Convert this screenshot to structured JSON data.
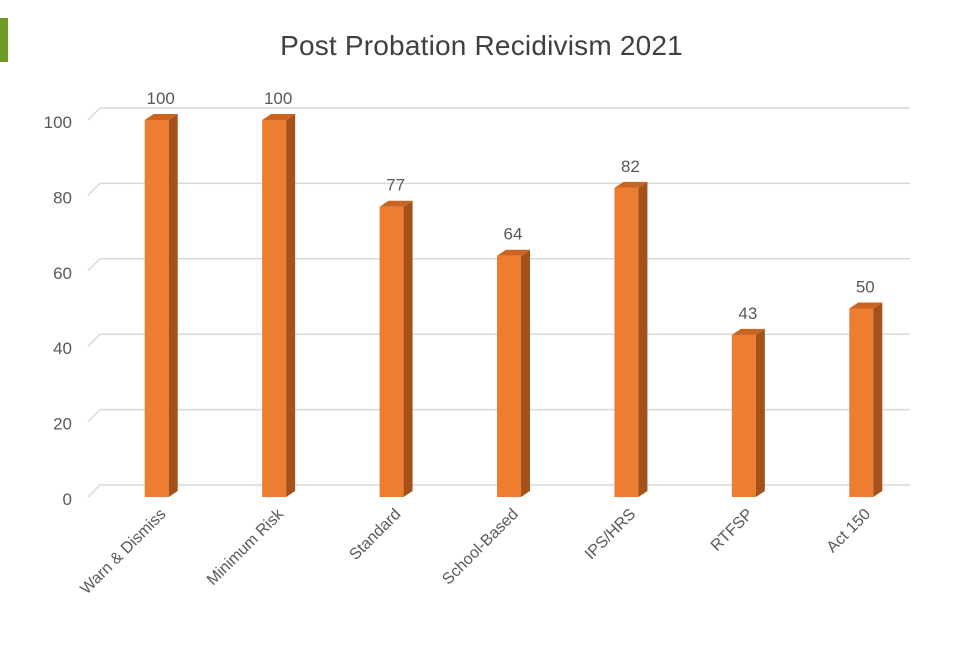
{
  "chart_data": {
    "type": "bar",
    "title": "Post Probation Recidivism 2021",
    "categories": [
      "Warn & Dismiss",
      "Minimum Risk",
      "Standard",
      "School-Based",
      "IPS/HRS",
      "RTFSP",
      "Act 150"
    ],
    "values": [
      100,
      100,
      77,
      64,
      82,
      43,
      50
    ],
    "data_labels": [
      "100",
      "100",
      "77",
      "64",
      "82",
      "43",
      "50"
    ],
    "ylim": [
      0,
      100
    ],
    "yticks": [
      0,
      20,
      40,
      60,
      80,
      100
    ],
    "grid": true,
    "legend": "none",
    "xlabel": "",
    "ylabel": ""
  },
  "colors": {
    "bar_front": "#ed7d31",
    "bar_side": "#a4521a",
    "bar_top": "#c96520",
    "grid": "#d9d9d9",
    "text": "#595959",
    "title": "#404040",
    "accent": "#6e9b27"
  }
}
